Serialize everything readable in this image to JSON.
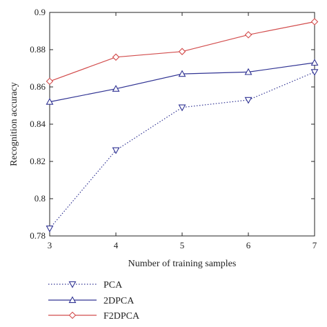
{
  "chart_data": {
    "type": "line",
    "title": "",
    "xlabel": "Number of training samples",
    "ylabel": "Recognition accuracy",
    "x": [
      3,
      4,
      5,
      6,
      7
    ],
    "xlim": [
      3,
      7
    ],
    "ylim": [
      0.78,
      0.9
    ],
    "xticks": [
      "3",
      "4",
      "5",
      "6",
      "7"
    ],
    "yticks": [
      "0.78",
      "0.8",
      "0.82",
      "0.84",
      "0.86",
      "0.88",
      "0.9"
    ],
    "grid": false,
    "legend_position": "bottom-left, below plot",
    "series": [
      {
        "name": "PCA",
        "values": [
          0.784,
          0.826,
          0.849,
          0.853,
          0.868
        ],
        "color": "#2e3192",
        "line_style": "dotted",
        "marker": "triangle-down"
      },
      {
        "name": "2DPCA",
        "values": [
          0.852,
          0.859,
          0.867,
          0.868,
          0.873
        ],
        "color": "#2e3192",
        "line_style": "solid",
        "marker": "triangle-up"
      },
      {
        "name": "F2DPCA",
        "values": [
          0.863,
          0.876,
          0.879,
          0.888,
          0.895
        ],
        "color": "#d24b4b",
        "line_style": "solid",
        "marker": "diamond"
      }
    ]
  }
}
